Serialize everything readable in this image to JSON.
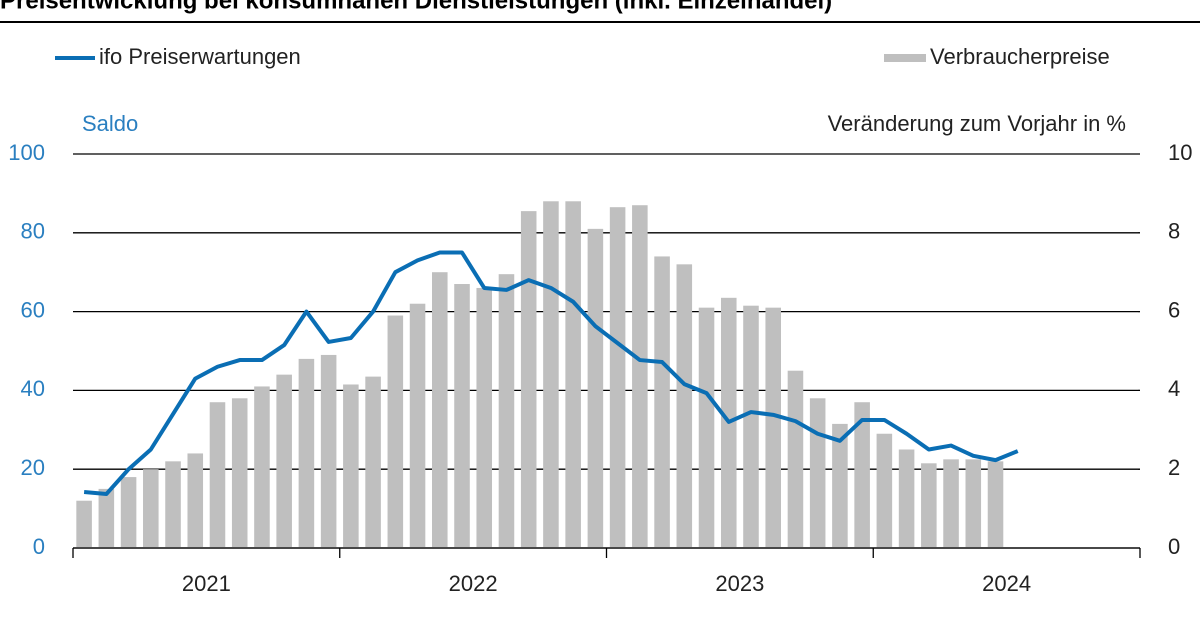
{
  "chart_data": {
    "type": "bar_line",
    "title": "Preisentwicklung bei konsumnahen Dienstleistungen (inkl. Einzelhandel)",
    "y_axis_label": "Saldo",
    "y2_axis_label": "Veränderung zum Vorjahr in %",
    "years": [
      "2021",
      "2022",
      "2023",
      "2024"
    ],
    "categories": [
      null,
      null,
      null,
      null,
      null,
      null,
      null,
      null,
      null,
      null,
      null,
      null,
      null,
      null,
      null,
      null,
      null,
      null,
      null,
      null,
      null,
      null,
      null,
      null,
      null,
      null,
      null,
      null,
      null,
      null,
      null,
      null,
      null,
      null,
      null,
      null,
      null,
      null,
      null,
      null,
      null,
      null,
      null,
      null,
      null,
      null,
      null,
      null
    ],
    "ylim": [
      0,
      100
    ],
    "yticks": [
      0,
      20,
      40,
      60,
      80,
      100
    ],
    "y2lim": [
      0,
      10
    ],
    "y2ticks": [
      0,
      2,
      4,
      6,
      8,
      10
    ],
    "grid": true,
    "series": [
      {
        "name": "ifo Preiserwartungen",
        "type": "line",
        "axis": "y",
        "color": "#0a6eb4",
        "values": [
          14.2,
          13.7,
          20,
          25,
          34,
          43,
          46,
          47.7,
          47.7,
          51.5,
          60,
          52.3,
          53.3,
          60,
          70,
          73,
          75,
          75,
          66,
          65.5,
          68,
          66,
          62.5,
          56.3,
          52,
          47.7,
          47.2,
          41.6,
          39.3,
          32,
          34.5,
          33.8,
          32.2,
          29,
          27.2,
          32.5,
          32.5,
          29,
          25,
          26,
          23.4,
          22.3,
          24.6,
          null,
          null,
          null,
          null,
          null
        ]
      },
      {
        "name": "Verbraucherpreise",
        "type": "bar",
        "axis": "y2",
        "color": "#bfbfbf",
        "values": [
          1.2,
          1.5,
          1.8,
          2.0,
          2.2,
          2.4,
          3.7,
          3.8,
          4.1,
          4.4,
          4.8,
          4.9,
          4.15,
          4.35,
          5.9,
          6.2,
          7.0,
          6.7,
          6.6,
          6.95,
          8.55,
          8.8,
          8.8,
          8.1,
          8.65,
          8.7,
          7.4,
          7.2,
          6.1,
          6.35,
          6.15,
          6.1,
          4.5,
          3.8,
          3.15,
          3.7,
          2.9,
          2.5,
          2.15,
          2.25,
          2.25,
          2.2,
          null,
          null,
          null,
          null,
          null,
          null
        ]
      }
    ]
  }
}
